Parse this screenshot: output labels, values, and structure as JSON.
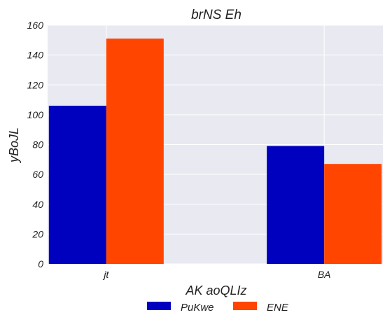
{
  "chart_data": {
    "type": "bar",
    "title": "brNS Eh",
    "xlabel": "AK aoQLIz",
    "ylabel": "yBoJL",
    "categories": [
      "jt",
      "BA"
    ],
    "series": [
      {
        "name": "PuKwe",
        "values": [
          106,
          79
        ]
      },
      {
        "name": "ENE",
        "values": [
          151,
          67
        ]
      }
    ],
    "ylim": [
      0,
      160
    ],
    "yticks": [
      0,
      20,
      40,
      60,
      80,
      100,
      120,
      140,
      160
    ],
    "grid": true,
    "legend_position": "bottom-center",
    "colors": {
      "plot_background": "#e9e9f2",
      "grid": "#ffffff",
      "series": [
        "#0000bf",
        "#ff4500"
      ]
    }
  }
}
